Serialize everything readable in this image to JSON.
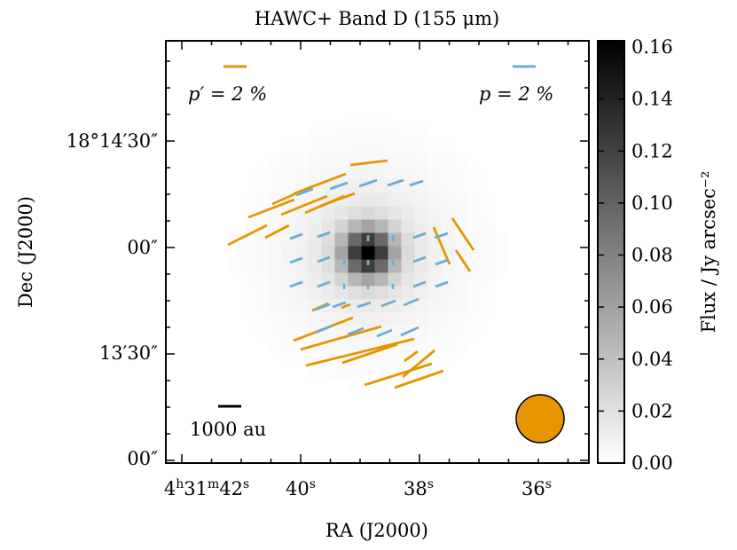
{
  "chart_data": {
    "type": "heatmap",
    "title": "HAWC+ Band D (155 μm)",
    "xlabel": "RA (J2000)",
    "ylabel": "Dec (J2000)",
    "x_ticks": [
      {
        "parts": [
          [
            "4",
            ""
          ],
          [
            "h",
            "sup"
          ],
          [
            "31",
            ""
          ],
          [
            "m",
            "sup"
          ],
          [
            "42",
            ""
          ],
          [
            "s",
            "sup"
          ]
        ]
      },
      {
        "parts": [
          [
            "40",
            ""
          ],
          [
            "s",
            "sup"
          ]
        ]
      },
      {
        "parts": [
          [
            "38",
            ""
          ],
          [
            "s",
            "sup"
          ]
        ]
      },
      {
        "parts": [
          [
            "36",
            ""
          ],
          [
            "s",
            "sup"
          ]
        ]
      }
    ],
    "y_ticks": [
      {
        "label": "18°14′30″"
      },
      {
        "label": "00″"
      },
      {
        "label": "13′30″"
      },
      {
        "label": "00″"
      }
    ],
    "colorbar": {
      "label": "Flux / Jy arcsec⁻²",
      "range": [
        0.0,
        0.16
      ],
      "ticks": [
        "0.00",
        "0.02",
        "0.04",
        "0.06",
        "0.08",
        "0.10",
        "0.12",
        "0.14",
        "0.16"
      ]
    },
    "legend": {
      "orange_label": "p′ = 2 %",
      "blue_label": "p = 2 %",
      "orange_color": "#e69500",
      "blue_color": "#6baed6"
    },
    "scale_bar_label": "1000 au",
    "beam_color": "#e69500",
    "source_peak_flux": 0.16,
    "series": [
      {
        "name": "p_prime_vectors",
        "color": "#e69500"
      },
      {
        "name": "p_vectors",
        "color": "#6baed6"
      }
    ]
  }
}
